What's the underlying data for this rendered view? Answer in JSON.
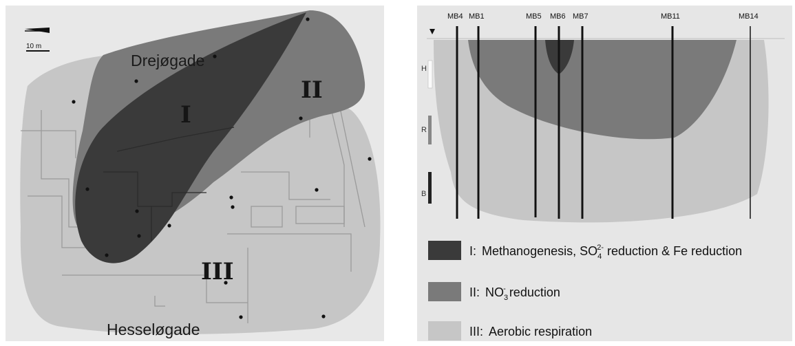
{
  "map": {
    "streets": {
      "north": "Drejøgade",
      "south": "Hesseløgade"
    },
    "zones": {
      "zone1": "I",
      "zone2": "II",
      "zone3": "III"
    },
    "scale_bar": "10 m"
  },
  "profile": {
    "wells": [
      "MB4",
      "MB1",
      "MB5",
      "MB6",
      "MB7",
      "MB11",
      "MB14"
    ],
    "depth_markers": [
      "H",
      "R",
      "B"
    ]
  },
  "legend": [
    {
      "prefix": "I:",
      "text_a": "Methanogenesis, SO",
      "sub": "4",
      "sup": "2-",
      "text_b": " reduction & Fe reduction",
      "color": "#3a3a3a"
    },
    {
      "prefix": "II:",
      "text_a": "NO",
      "sub": "3",
      "sup": "-",
      "text_b": " reduction",
      "color": "#7a7a7a"
    },
    {
      "prefix": "III:",
      "text_a": "Aerobic respiration",
      "sub": "",
      "sup": "",
      "text_b": "",
      "color": "#c6c6c6"
    }
  ],
  "colors": {
    "zone1": "#3a3a3a",
    "zone2": "#7a7a7a",
    "zone3": "#c6c6c6",
    "background": "#e6e6e6"
  }
}
